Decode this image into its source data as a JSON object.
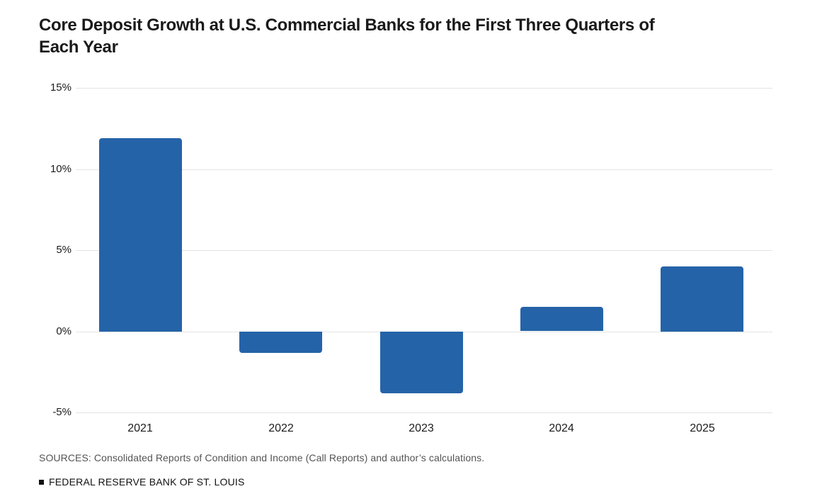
{
  "header": {
    "title_lines": [
      "Core Deposit Growth at U.S. Commercial Banks for the First Three Quarters of",
      "Each Year"
    ]
  },
  "chart_data": {
    "type": "bar",
    "title": "Core Deposit Growth at U.S. Commercial Banks for the First Three Quarters of Each Year",
    "categories": [
      "2021",
      "2022",
      "2023",
      "2024",
      "2025"
    ],
    "values": [
      11.9,
      -1.3,
      -3.8,
      1.5,
      4.0
    ],
    "unit": "%",
    "xlabel": "",
    "ylabel": "",
    "ylim": [
      -5,
      15
    ],
    "ytick_interval": 5,
    "ytick_labels": [
      "15%",
      "10%",
      "5%",
      "0%",
      "-5%"
    ],
    "grid": true,
    "legend": "none",
    "bar_color": "#2563a8"
  },
  "footer": {
    "sources": "SOURCES: Consolidated Reports of Condition and Income (Call Reports) and author’s calculations.",
    "branding": "FEDERAL RESERVE BANK OF ST. LOUIS"
  },
  "colors": {
    "bar": "#2563a8",
    "gridline": "#e4e4e4",
    "title_text": "#1a1a1a",
    "axis_text": "#1c1c1c",
    "source_text": "#545454",
    "menu_icon": "#666666"
  }
}
